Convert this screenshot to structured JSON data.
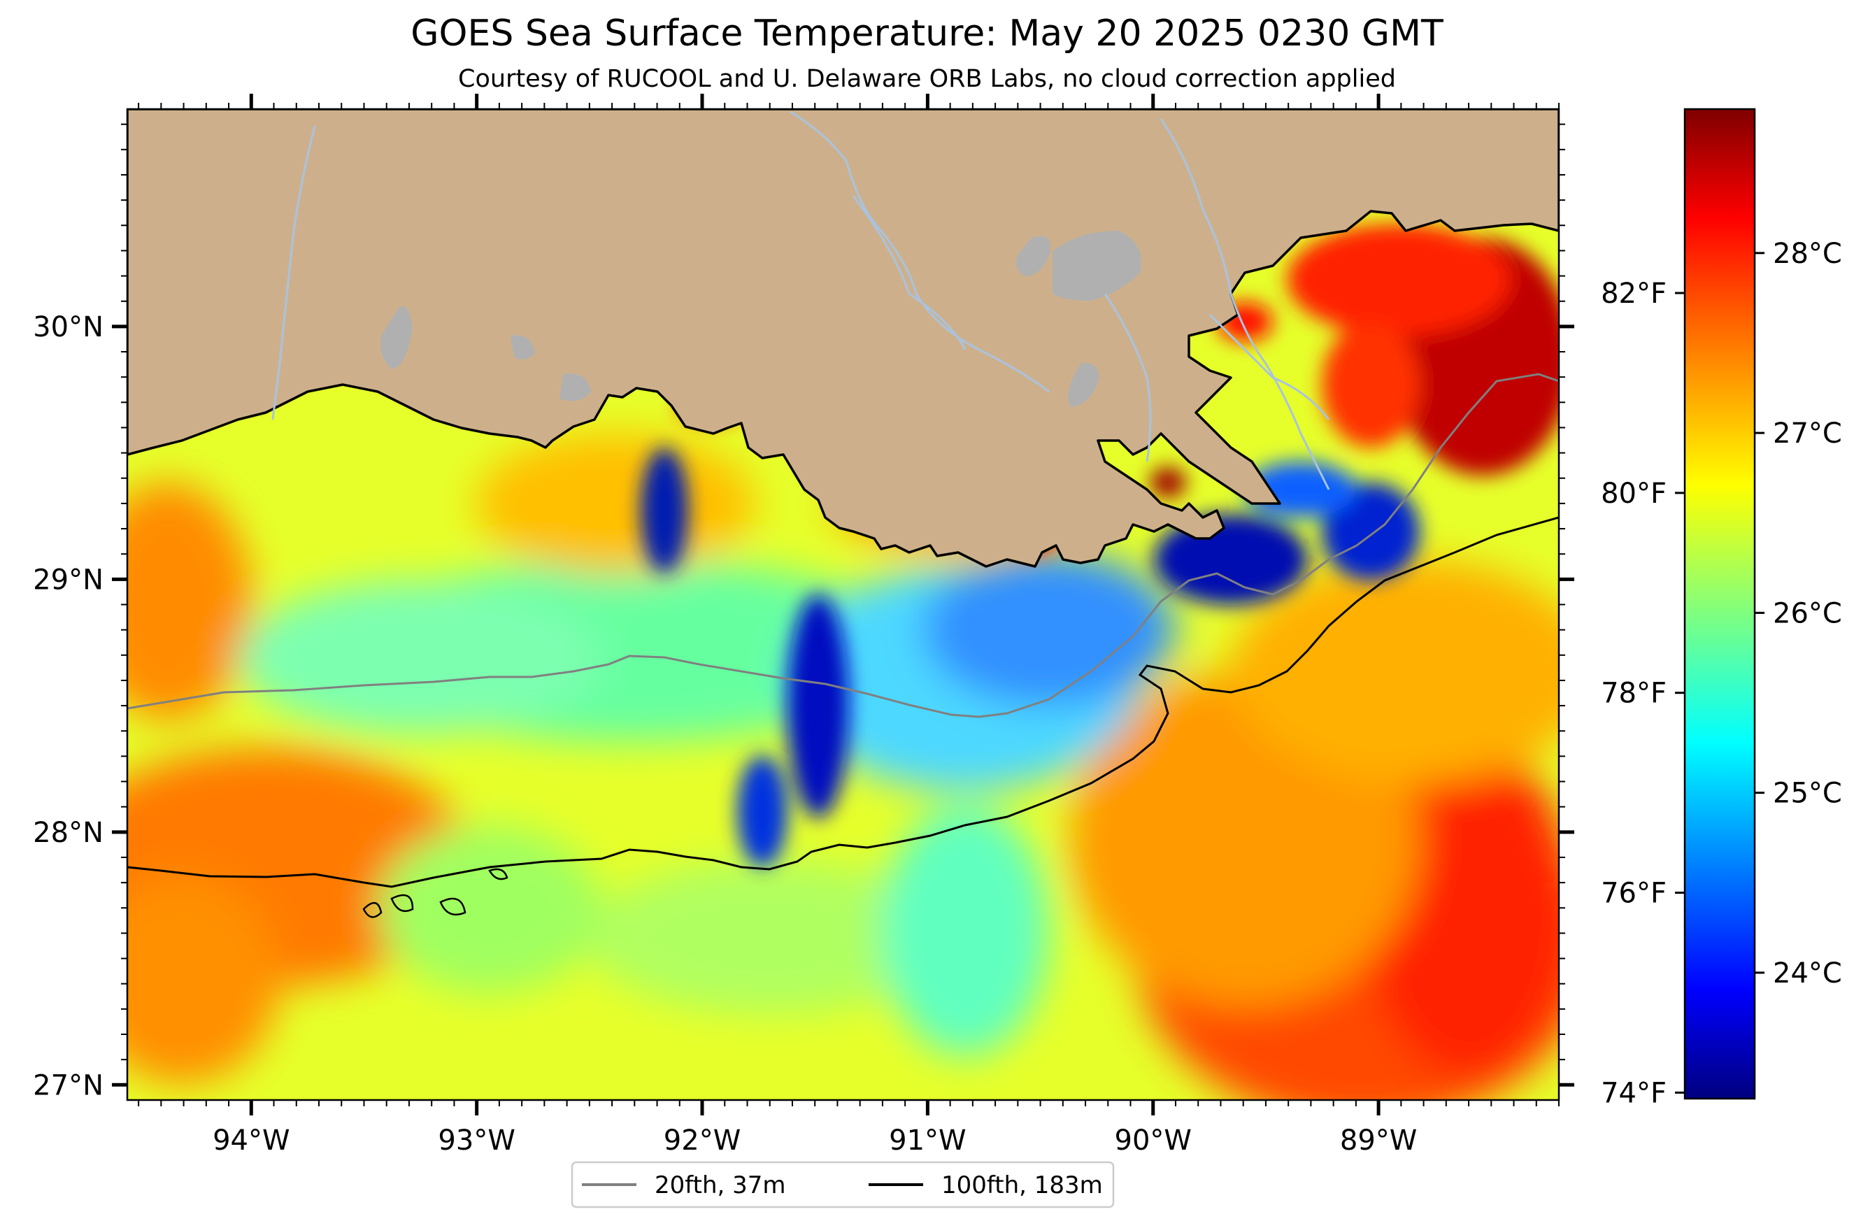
{
  "title": "GOES Sea Surface Temperature: May 20 2025 0230 GMT",
  "subtitle": "Courtesy of RUCOOL and U. Delaware ORB Labs, no cloud correction applied",
  "map": {
    "lon_range": [
      -94.55,
      -88.2
    ],
    "lat_range": [
      26.94,
      30.86
    ],
    "longitude_labels": [
      {
        "lon": -94,
        "label": "94°W"
      },
      {
        "lon": -93,
        "label": "93°W"
      },
      {
        "lon": -92,
        "label": "92°W"
      },
      {
        "lon": -91,
        "label": "91°W"
      },
      {
        "lon": -90,
        "label": "90°W"
      },
      {
        "lon": -89,
        "label": "89°W"
      }
    ],
    "latitude_labels": [
      {
        "lat": 30,
        "label": "30°N"
      },
      {
        "lat": 29,
        "label": "29°N"
      },
      {
        "lat": 28,
        "label": "28°N"
      },
      {
        "lat": 27,
        "label": "27°N"
      }
    ],
    "colors": {
      "land": "#cdb08b",
      "lakes_rivers": "#a9c3df",
      "no_data": "#ffffff"
    }
  },
  "colorbar": {
    "colormap": "jet",
    "celsius_range": [
      23.3,
      28.8
    ],
    "celsius_labels": [
      {
        "value": 28,
        "label": "28°C"
      },
      {
        "value": 27,
        "label": "27°C"
      },
      {
        "value": 26,
        "label": "26°C"
      },
      {
        "value": 25,
        "label": "25°C"
      },
      {
        "value": 24,
        "label": "24°C"
      }
    ],
    "fahrenheit_labels": [
      {
        "value": 82,
        "label": "82°F"
      },
      {
        "value": 80,
        "label": "80°F"
      },
      {
        "value": 78,
        "label": "78°F"
      },
      {
        "value": 76,
        "label": "76°F"
      },
      {
        "value": 74,
        "label": "74°F"
      }
    ]
  },
  "legend": {
    "items": [
      {
        "label": "20fth, 37m",
        "color": "#808080"
      },
      {
        "label": "100fth, 183m",
        "color": "#000000"
      }
    ]
  }
}
